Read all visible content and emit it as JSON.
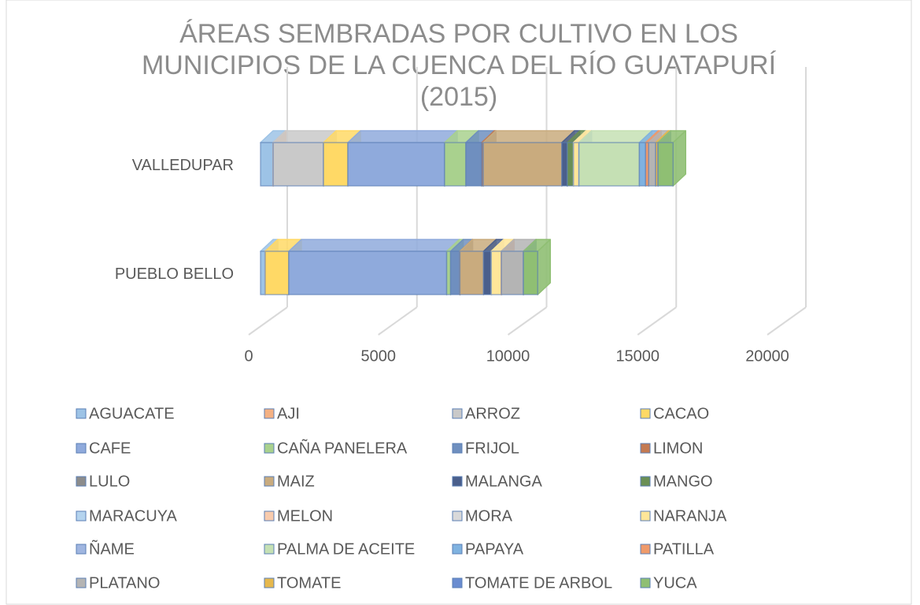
{
  "chart_data": {
    "type": "bar3d_stacked_horizontal",
    "title": "ÁREAS SEMBRADAS POR CULTIVO EN LOS MUNICIPIOS DE LA CUENCA DEL RÍO GUATAPURÍ (2015)",
    "categories": [
      "PUEBLO BELLO",
      "VALLEDUPAR"
    ],
    "xlim": [
      0,
      20000
    ],
    "xticks": [
      0,
      5000,
      10000,
      15000,
      20000
    ],
    "grid": true,
    "legend": "bottom",
    "series": [
      {
        "name": "AGUACATE",
        "color": "#9dc3e6",
        "values": [
          180,
          490
        ]
      },
      {
        "name": "AJI",
        "color": "#f4b183",
        "values": [
          0,
          0
        ]
      },
      {
        "name": "ARROZ",
        "color": "#c9c9c9",
        "values": [
          0,
          1940
        ]
      },
      {
        "name": "CACAO",
        "color": "#ffd966",
        "values": [
          910,
          940
        ]
      },
      {
        "name": "CAFE",
        "color": "#8faadc",
        "values": [
          6090,
          3730
        ]
      },
      {
        "name": "CAÑA PANELERA",
        "color": "#a9d18e",
        "values": [
          150,
          820
        ]
      },
      {
        "name": "FRIJOL",
        "color": "#6f8fbf",
        "values": [
          360,
          610
        ]
      },
      {
        "name": "LIMON",
        "color": "#c47a52",
        "values": [
          0,
          60
        ]
      },
      {
        "name": "LULO",
        "color": "#8c8c8c",
        "values": [
          0,
          0
        ]
      },
      {
        "name": "MAIZ",
        "color": "#c9ab7e",
        "values": [
          910,
          3030
        ]
      },
      {
        "name": "MALANGA",
        "color": "#4a5f8c",
        "values": [
          300,
          210
        ]
      },
      {
        "name": "MANGO",
        "color": "#6a8f55",
        "values": [
          0,
          240
        ]
      },
      {
        "name": "MARACUYA",
        "color": "#b4d3ee",
        "values": [
          0,
          0
        ]
      },
      {
        "name": "MELON",
        "color": "#f8cbad",
        "values": [
          0,
          0
        ]
      },
      {
        "name": "MORA",
        "color": "#d9d9d9",
        "values": [
          0,
          0
        ]
      },
      {
        "name": "NARANJA",
        "color": "#ffe699",
        "values": [
          390,
          210
        ]
      },
      {
        "name": "ÑAME",
        "color": "#9fb5e0",
        "values": [
          0,
          0
        ]
      },
      {
        "name": "PALMA DE ACEITE",
        "color": "#c5e0b4",
        "values": [
          0,
          2330
        ]
      },
      {
        "name": "PAPAYA",
        "color": "#7fb2e0",
        "values": [
          0,
          240
        ]
      },
      {
        "name": "PATILLA",
        "color": "#ef9a6a",
        "values": [
          0,
          120
        ]
      },
      {
        "name": "PLATANO",
        "color": "#b4b4b4",
        "values": [
          850,
          270
        ]
      },
      {
        "name": "TOMATE",
        "color": "#e6b84d",
        "values": [
          0,
          90
        ]
      },
      {
        "name": "TOMATE DE ARBOL",
        "color": "#6a8cd0",
        "values": [
          0,
          0
        ]
      },
      {
        "name": "YUCA",
        "color": "#8fbf73",
        "values": [
          550,
          580
        ]
      }
    ]
  }
}
